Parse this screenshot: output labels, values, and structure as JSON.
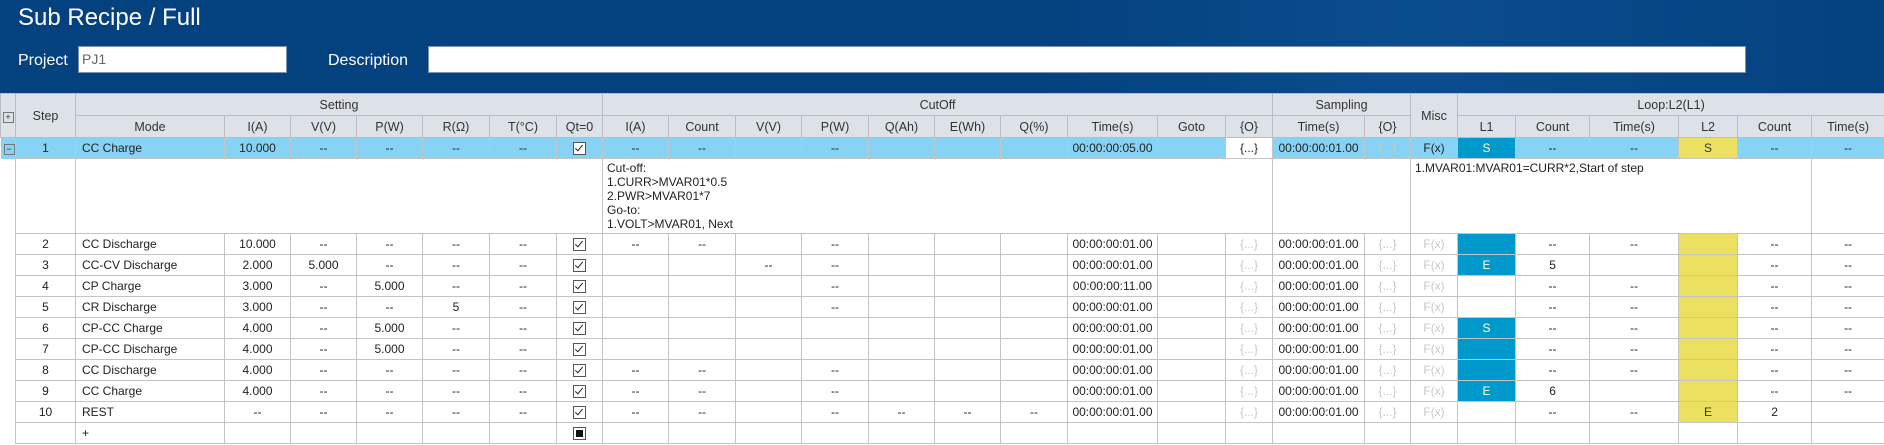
{
  "window": {
    "title": "Sub Recipe / Full"
  },
  "project": {
    "label": "Project",
    "value": "PJ1"
  },
  "description": {
    "label": "Description",
    "value": ""
  },
  "colors": {
    "header_bar": "#04417f",
    "selected_row": "#86d3f5",
    "loop1": "#0099cc",
    "loop2": "#ebe060"
  },
  "table": {
    "expand_all_icon": "plus-box-icon",
    "groups": {
      "step": "Step",
      "setting": "Setting",
      "cutoff": "CutOff",
      "sampling": "Sampling",
      "misc": "Misc",
      "loop": "Loop:L2(L1)"
    },
    "setting_headers": [
      "Mode",
      "I(A)",
      "V(V)",
      "P(W)",
      "R(Ω)",
      "T(°C)",
      "Qt=0"
    ],
    "cutoff_headers": [
      "I(A)",
      "Count",
      "V(V)",
      "P(W)",
      "Q(Ah)",
      "E(Wh)",
      "Q(%)",
      "Time(s)",
      "Goto",
      "{O}"
    ],
    "sampling_headers": [
      "Time(s)",
      "{O}"
    ],
    "loop_headers": [
      "L1",
      "Count",
      "Time(s)",
      "L2",
      "Count",
      "Time(s)"
    ],
    "rows": [
      {
        "step": "1",
        "mode": "CC Charge",
        "setting": [
          "10.000",
          "--",
          "--",
          "--",
          "--"
        ],
        "qt": "checked",
        "cutoff": [
          "--",
          "--",
          "",
          "--",
          "",
          "",
          "",
          "00:00:00:05.00",
          "",
          "{...}"
        ],
        "cutoff_o_active": true,
        "sampling": [
          "00:00:00:01.00",
          "{...}"
        ],
        "misc": "F(x)",
        "misc_active": true,
        "l1": "S",
        "l1_on": true,
        "l1_count": "--",
        "l1_time": "--",
        "l2": "S",
        "l2_on": true,
        "l2_count": "--",
        "l2_time": "--",
        "selected": true,
        "expanded": true,
        "detail": {
          "cutoff_text": "Cut-off:\n1.CURR>MVAR01*0.5\n2.PWR>MVAR01*7\nGo-to:\n1.VOLT>MVAR01, Next",
          "misc_text": "1.MVAR01:MVAR01=CURR*2,Start of step"
        }
      },
      {
        "step": "2",
        "mode": "CC Discharge",
        "setting": [
          "10.000",
          "--",
          "--",
          "--",
          "--"
        ],
        "qt": "checked",
        "cutoff": [
          "--",
          "--",
          "",
          "--",
          "",
          "",
          "",
          "00:00:00:01.00",
          "",
          "{...}"
        ],
        "sampling": [
          "00:00:00:01.00",
          "{...}"
        ],
        "misc": "F(x)",
        "l1": "",
        "l1_on": true,
        "l1_count": "--",
        "l1_time": "--",
        "l2": "",
        "l2_on": true,
        "l2_count": "--",
        "l2_time": "--"
      },
      {
        "step": "3",
        "mode": "CC-CV Discharge",
        "setting": [
          "2.000",
          "5.000",
          "--",
          "--",
          "--"
        ],
        "qt": "checked",
        "cutoff": [
          "",
          "",
          "--",
          "--",
          "",
          "",
          "",
          "00:00:00:01.00",
          "",
          "{...}"
        ],
        "sampling": [
          "00:00:00:01.00",
          "{...}"
        ],
        "misc": "F(x)",
        "l1": "E",
        "l1_on": true,
        "l1_count": "5",
        "l1_time": "",
        "l2": "",
        "l2_on": true,
        "l2_count": "--",
        "l2_time": "--"
      },
      {
        "step": "4",
        "mode": "CP Charge",
        "setting": [
          "3.000",
          "--",
          "5.000",
          "--",
          "--"
        ],
        "qt": "checked",
        "cutoff": [
          "",
          "",
          "",
          "--",
          "",
          "",
          "",
          "00:00:00:11.00",
          "",
          "{...}"
        ],
        "sampling": [
          "00:00:00:01.00",
          "{...}"
        ],
        "misc": "F(x)",
        "l1": "",
        "l1_on": false,
        "l1_count": "--",
        "l1_time": "--",
        "l2": "",
        "l2_on": true,
        "l2_count": "--",
        "l2_time": "--"
      },
      {
        "step": "5",
        "mode": "CR Discharge",
        "setting": [
          "3.000",
          "--",
          "--",
          "5",
          "--"
        ],
        "qt": "checked",
        "cutoff": [
          "",
          "",
          "",
          "--",
          "",
          "",
          "",
          "00:00:00:01.00",
          "",
          "{...}"
        ],
        "sampling": [
          "00:00:00:01.00",
          "{...}"
        ],
        "misc": "F(x)",
        "l1": "",
        "l1_on": false,
        "l1_count": "--",
        "l1_time": "--",
        "l2": "",
        "l2_on": true,
        "l2_count": "--",
        "l2_time": "--"
      },
      {
        "step": "6",
        "mode": "CP-CC Charge",
        "setting": [
          "4.000",
          "--",
          "5.000",
          "--",
          "--"
        ],
        "qt": "checked",
        "cutoff": [
          "",
          "",
          "",
          "",
          "",
          "",
          "",
          "00:00:00:01.00",
          "",
          "{...}"
        ],
        "sampling": [
          "00:00:00:01.00",
          "{...}"
        ],
        "misc": "F(x)",
        "l1": "S",
        "l1_on": true,
        "l1_count": "--",
        "l1_time": "--",
        "l2": "",
        "l2_on": true,
        "l2_count": "--",
        "l2_time": "--"
      },
      {
        "step": "7",
        "mode": "CP-CC Discharge",
        "setting": [
          "4.000",
          "--",
          "5.000",
          "--",
          "--"
        ],
        "qt": "checked",
        "cutoff": [
          "",
          "",
          "",
          "",
          "",
          "",
          "",
          "00:00:00:01.00",
          "",
          "{...}"
        ],
        "sampling": [
          "00:00:00:01.00",
          "{...}"
        ],
        "misc": "F(x)",
        "l1": "",
        "l1_on": true,
        "l1_count": "--",
        "l1_time": "--",
        "l2": "",
        "l2_on": true,
        "l2_count": "--",
        "l2_time": "--"
      },
      {
        "step": "8",
        "mode": "CC Discharge",
        "setting": [
          "4.000",
          "--",
          "--",
          "--",
          "--"
        ],
        "qt": "checked",
        "cutoff": [
          "--",
          "--",
          "",
          "--",
          "",
          "",
          "",
          "00:00:00:01.00",
          "",
          "{...}"
        ],
        "sampling": [
          "00:00:00:01.00",
          "{...}"
        ],
        "misc": "F(x)",
        "l1": "",
        "l1_on": true,
        "l1_count": "--",
        "l1_time": "--",
        "l2": "",
        "l2_on": true,
        "l2_count": "--",
        "l2_time": "--"
      },
      {
        "step": "9",
        "mode": "CC Charge",
        "setting": [
          "4.000",
          "--",
          "--",
          "--",
          "--"
        ],
        "qt": "checked",
        "cutoff": [
          "--",
          "--",
          "",
          "--",
          "",
          "",
          "",
          "00:00:00:01.00",
          "",
          "{...}"
        ],
        "sampling": [
          "00:00:00:01.00",
          "{...}"
        ],
        "misc": "F(x)",
        "l1": "E",
        "l1_on": true,
        "l1_count": "6",
        "l1_time": "",
        "l2": "",
        "l2_on": true,
        "l2_count": "--",
        "l2_time": "--"
      },
      {
        "step": "10",
        "mode": "REST",
        "setting": [
          "--",
          "--",
          "--",
          "--",
          "--"
        ],
        "qt": "checked",
        "cutoff": [
          "--",
          "--",
          "",
          "--",
          "--",
          "--",
          "--",
          "00:00:00:01.00",
          "",
          "{...}"
        ],
        "sampling": [
          "00:00:00:01.00",
          "{...}"
        ],
        "misc": "F(x)",
        "l1": "",
        "l1_on": false,
        "l1_count": "--",
        "l1_time": "--",
        "l2": "E",
        "l2_on": true,
        "l2_count": "2",
        "l2_time": ""
      }
    ],
    "add_row": {
      "label": "+",
      "qt": "filled"
    }
  }
}
